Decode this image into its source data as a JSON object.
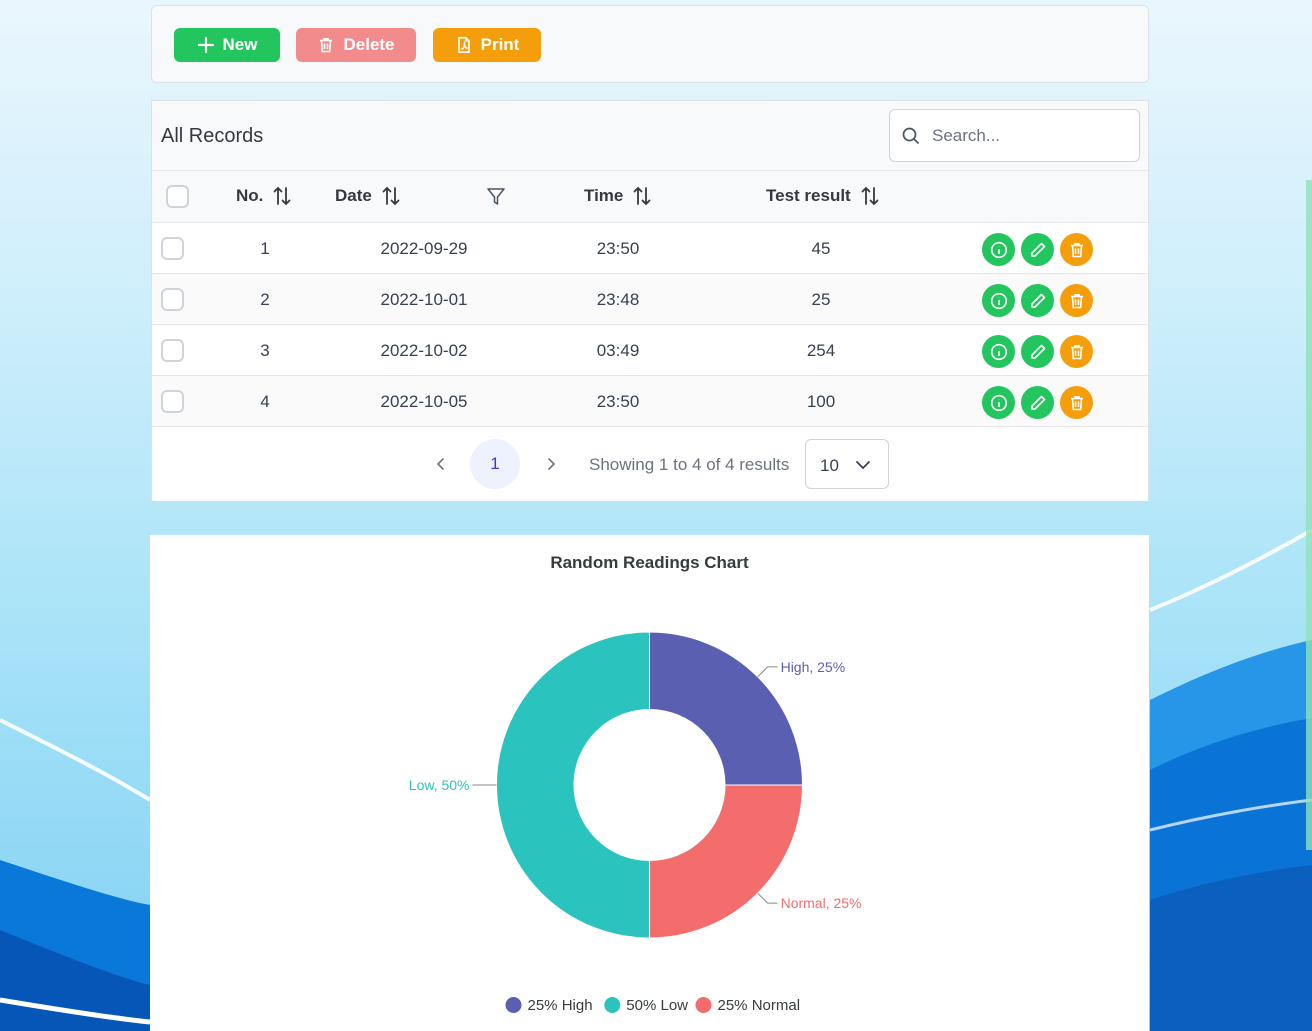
{
  "toolbar": {
    "new_label": "New",
    "delete_label": "Delete",
    "print_label": "Print"
  },
  "table": {
    "title": "All Records",
    "search_placeholder": "Search...",
    "columns": {
      "no": "No.",
      "date": "Date",
      "time": "Time",
      "test_result": "Test result"
    },
    "rows": [
      {
        "no": "1",
        "date": "2022-09-29",
        "time": "23:50",
        "test_result": "45"
      },
      {
        "no": "2",
        "date": "2022-10-01",
        "time": "23:48",
        "test_result": "25"
      },
      {
        "no": "3",
        "date": "2022-10-02",
        "time": "03:49",
        "test_result": "254"
      },
      {
        "no": "4",
        "date": "2022-10-05",
        "time": "23:50",
        "test_result": "100"
      }
    ],
    "row_actions": [
      "info-icon",
      "pencil-icon",
      "trash-icon"
    ]
  },
  "paginator": {
    "current_page": "1",
    "info": "Showing 1 to 4 of 4 results",
    "rows_per_page": "10"
  },
  "chart_data": {
    "type": "pie",
    "donut": true,
    "title": "Random Readings Chart",
    "categories": [
      "High",
      "Normal",
      "Low"
    ],
    "values": [
      25,
      25,
      50
    ],
    "colors": [
      "#5b5fb2",
      "#f26d6b",
      "#2ac3bd"
    ],
    "slice_labels": [
      "High, 25%",
      "Normal, 25%",
      "Low, 50%"
    ],
    "legend": {
      "placement": "bottom-center",
      "entries": [
        "25% High",
        "50% Low",
        "25% Normal"
      ],
      "colors": [
        "#5b5fb2",
        "#2ac3bd",
        "#f26d6b"
      ]
    }
  },
  "colors": {
    "success": "#22c55e",
    "danger_light": "#f28b8b",
    "warning": "#f59e0b"
  }
}
